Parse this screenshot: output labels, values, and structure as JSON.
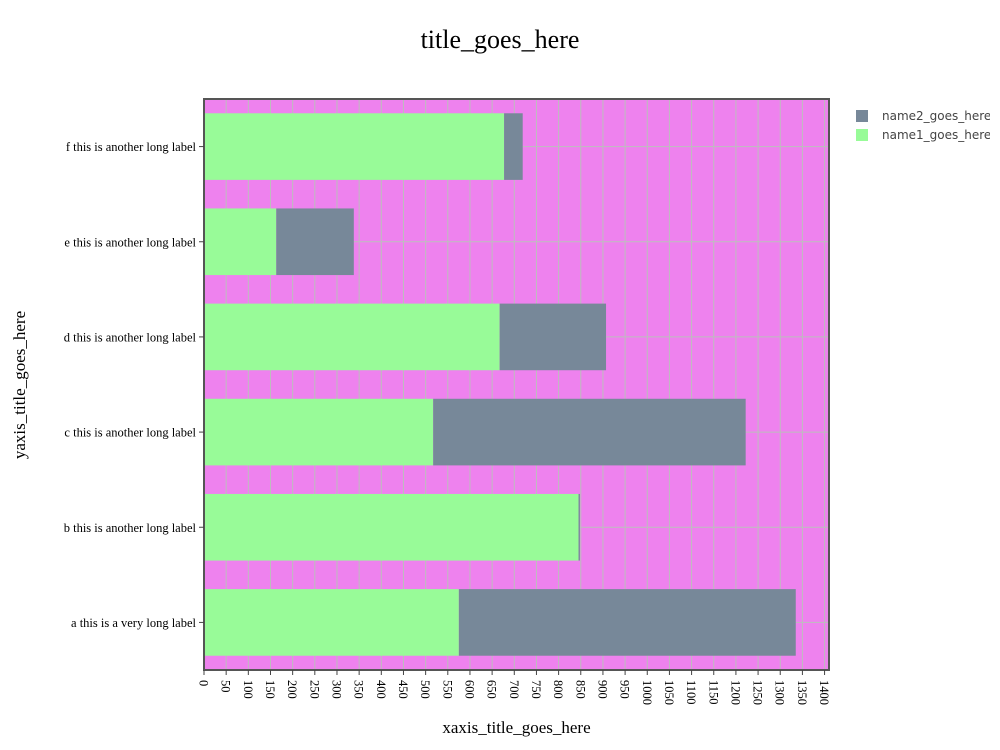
{
  "chart_data": {
    "type": "bar",
    "orientation": "horizontal",
    "barmode": "stack",
    "title": "title_goes_here",
    "xlabel": "xaxis_title_goes_here",
    "ylabel": "yaxis_title_goes_here",
    "xlim": [
      0,
      1410
    ],
    "x_ticks": [
      0,
      50,
      100,
      150,
      200,
      250,
      300,
      350,
      400,
      450,
      500,
      550,
      600,
      650,
      700,
      750,
      800,
      850,
      900,
      950,
      1000,
      1050,
      1100,
      1150,
      1200,
      1250,
      1300,
      1350,
      1400
    ],
    "categories": [
      "a this is a very long label",
      "b this is another long label",
      "c this is another long label",
      "d this is another long label",
      "e this is another long label",
      "f this is another long label"
    ],
    "series": [
      {
        "name": "name1_goes_here",
        "color": "#98fb98",
        "values": [
          575,
          845,
          517,
          667,
          163,
          677
        ]
      },
      {
        "name": "name2_goes_here",
        "color": "#778899",
        "values": [
          760,
          3,
          705,
          240,
          175,
          42
        ]
      }
    ],
    "plot_background": "#ee82ee",
    "grid": true,
    "legend_position": "top-right"
  }
}
